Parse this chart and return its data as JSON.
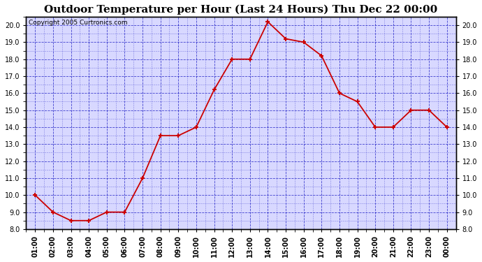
{
  "title": "Outdoor Temperature per Hour (Last 24 Hours) Thu Dec 22 00:00",
  "copyright": "Copyright 2005 Curtronics.com",
  "x_labels": [
    "01:00",
    "02:00",
    "03:00",
    "04:00",
    "05:00",
    "06:00",
    "07:00",
    "08:00",
    "09:00",
    "10:00",
    "11:00",
    "12:00",
    "13:00",
    "14:00",
    "15:00",
    "16:00",
    "17:00",
    "18:00",
    "19:00",
    "20:00",
    "21:00",
    "22:00",
    "23:00",
    "00:00"
  ],
  "y_values": [
    10.0,
    9.0,
    8.5,
    8.5,
    9.0,
    9.0,
    11.0,
    13.5,
    13.5,
    14.0,
    16.2,
    18.0,
    18.0,
    20.2,
    19.2,
    19.0,
    18.2,
    16.0,
    15.5,
    14.0,
    14.0,
    15.0,
    15.0,
    14.0
  ],
  "line_color": "#cc0000",
  "marker": "+",
  "marker_size": 5,
  "line_width": 1.3,
  "bg_color": "#ffffff",
  "plot_bg_color": "#d8d8ff",
  "grid_color": "#0000bb",
  "grid_style": "--",
  "grid_alpha": 0.7,
  "ylim": [
    8.0,
    20.5
  ],
  "yticks": [
    8.0,
    9.0,
    10.0,
    11.0,
    12.0,
    13.0,
    14.0,
    15.0,
    16.0,
    17.0,
    18.0,
    19.0,
    20.0
  ],
  "title_fontsize": 11,
  "copyright_fontsize": 6.5,
  "tick_fontsize": 7,
  "frame_color": "#000000"
}
